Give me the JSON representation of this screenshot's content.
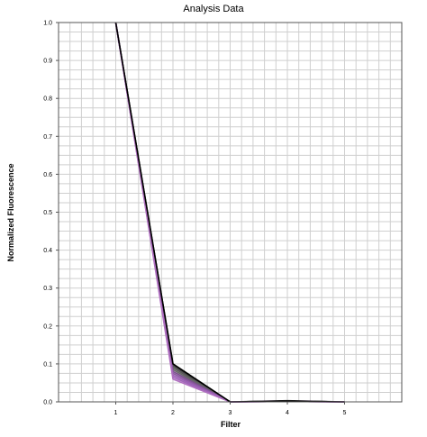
{
  "chart_data": {
    "type": "line",
    "title": "Analysis Data",
    "xlabel": "Filter",
    "ylabel": "Normalized Fluorescence",
    "x": [
      1,
      2,
      3,
      4,
      5
    ],
    "xlim": [
      0,
      6
    ],
    "ylim": [
      0,
      1.0
    ],
    "x_ticks": [
      1,
      2,
      3,
      4,
      5
    ],
    "x_tick_labels": [
      "1",
      "2",
      "3",
      "4",
      "5"
    ],
    "y_ticks": [
      0.0,
      0.1,
      0.2,
      0.3,
      0.4,
      0.5,
      0.6,
      0.7,
      0.8,
      0.9,
      1.0
    ],
    "y_tick_labels": [
      "0.0",
      "0.1",
      "0.2",
      "0.3",
      "0.4",
      "0.5",
      "0.6",
      "0.7",
      "0.8",
      "0.9",
      "1.0"
    ],
    "grid": true,
    "series": [
      {
        "values": [
          1.0,
          0.1,
          0.0,
          0.003,
          0.0
        ],
        "color": "#2e2e2e"
      },
      {
        "values": [
          1.0,
          0.095,
          0.0,
          0.002,
          0.0
        ],
        "color": "#444444"
      },
      {
        "values": [
          1.0,
          0.09,
          0.0,
          0.002,
          0.0
        ],
        "color": "#5a5a5a"
      },
      {
        "values": [
          1.0,
          0.085,
          0.0,
          0.002,
          0.0
        ],
        "color": "#666666"
      },
      {
        "values": [
          1.0,
          0.08,
          0.0,
          0.001,
          0.0
        ],
        "color": "#7a4f8c"
      },
      {
        "values": [
          1.0,
          0.075,
          0.0,
          0.001,
          0.0
        ],
        "color": "#8b5aa0"
      },
      {
        "values": [
          1.0,
          0.07,
          0.0,
          0.001,
          0.0
        ],
        "color": "#9b5fb5"
      },
      {
        "values": [
          1.0,
          0.065,
          0.0,
          0.001,
          0.0
        ],
        "color": "#a066b8"
      },
      {
        "values": [
          1.0,
          0.06,
          0.0,
          0.001,
          0.0
        ],
        "color": "#b070c0"
      },
      {
        "values": [
          1.0,
          0.1,
          0.0,
          0.002,
          0.0
        ],
        "color": "#000000"
      }
    ]
  }
}
